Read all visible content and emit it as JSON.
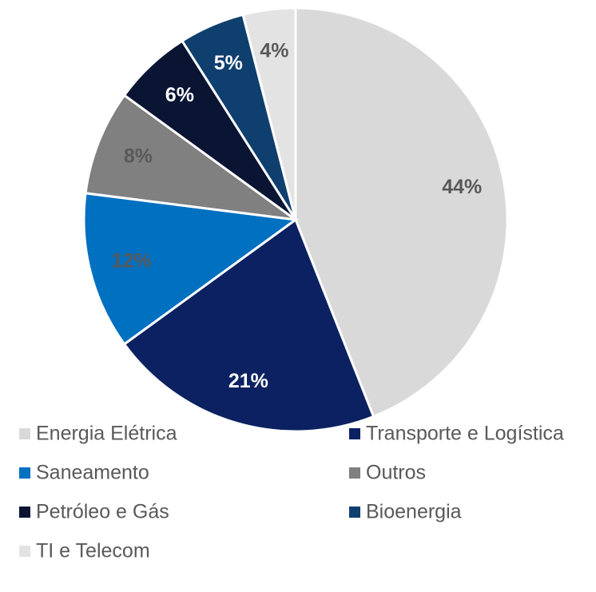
{
  "chart_data": {
    "type": "pie",
    "categories": [
      "Energia Elétrica",
      "Transporte e Logística",
      "Saneamento",
      "Outros",
      "Petróleo e Gás",
      "Bioenergia",
      "TI  e Telecom"
    ],
    "values": [
      44,
      21,
      12,
      8,
      6,
      5,
      4
    ],
    "value_labels": [
      "44%",
      "21%",
      "12%",
      "8%",
      "6%",
      "5%",
      "4%"
    ],
    "colors": [
      "#d9d9d9",
      "#0b2161",
      "#0070c0",
      "#808080",
      "#0a1433",
      "#0f3f6e",
      "#e3e3e3"
    ],
    "legend": "bottom"
  }
}
